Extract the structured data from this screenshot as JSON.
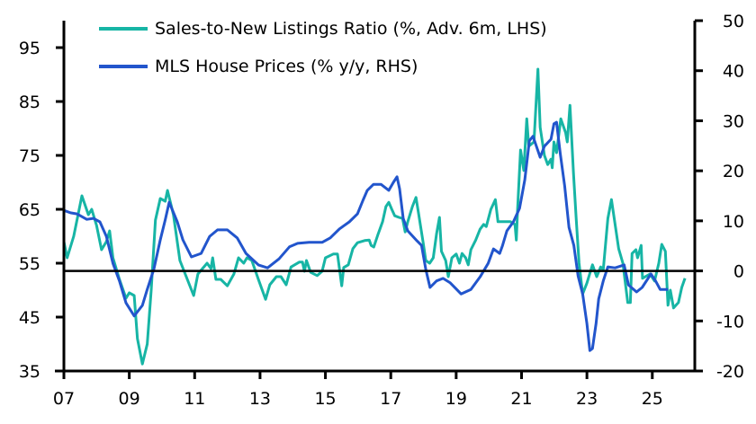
{
  "chart_data": {
    "type": "line",
    "title": "",
    "xlabel": "",
    "ylabel_left": "",
    "ylabel_right": "",
    "xlim": [
      2007,
      2026.3
    ],
    "ylim_left": [
      35,
      100
    ],
    "ylim_right": [
      -20,
      50
    ],
    "x_ticks": [
      2007,
      2009,
      2011,
      2013,
      2015,
      2017,
      2019,
      2021,
      2023,
      2025
    ],
    "x_tick_labels": [
      "07",
      "09",
      "11",
      "13",
      "15",
      "17",
      "19",
      "21",
      "23",
      "25"
    ],
    "y_left_ticks": [
      35,
      45,
      55,
      65,
      75,
      85,
      95
    ],
    "y_left_tick_labels": [
      "35",
      "45",
      "55",
      "65",
      "75",
      "85",
      "95"
    ],
    "y_right_ticks": [
      -20,
      -10,
      0,
      10,
      20,
      30,
      40,
      50
    ],
    "y_right_tick_labels": [
      "-20",
      "-10",
      "0",
      "10",
      "20",
      "30",
      "40",
      "50"
    ],
    "reference_line_right": 0,
    "grid": false,
    "legend_placement": "top-left",
    "series": [
      {
        "name": "Sales-to-New Listings Ratio (%, Adv. 6m, LHS)",
        "axis": "left",
        "color": "#17b5a5",
        "points": [
          [
            2007.0,
            59
          ],
          [
            2007.1,
            56
          ],
          [
            2007.3,
            60
          ],
          [
            2007.55,
            67.5
          ],
          [
            2007.75,
            64
          ],
          [
            2007.85,
            65
          ],
          [
            2008.0,
            62
          ],
          [
            2008.15,
            57.5
          ],
          [
            2008.3,
            59
          ],
          [
            2008.4,
            61
          ],
          [
            2008.5,
            56
          ],
          [
            2008.7,
            52
          ],
          [
            2008.9,
            48.5
          ],
          [
            2009.0,
            49.5
          ],
          [
            2009.15,
            49
          ],
          [
            2009.25,
            41
          ],
          [
            2009.4,
            36.3
          ],
          [
            2009.55,
            40
          ],
          [
            2009.67,
            50
          ],
          [
            2009.8,
            63
          ],
          [
            2009.95,
            67
          ],
          [
            2010.1,
            66.5
          ],
          [
            2010.17,
            68.5
          ],
          [
            2010.35,
            64
          ],
          [
            2010.55,
            55.5
          ],
          [
            2010.97,
            49
          ],
          [
            2011.1,
            53
          ],
          [
            2011.38,
            55
          ],
          [
            2011.5,
            54
          ],
          [
            2011.55,
            56
          ],
          [
            2011.65,
            52
          ],
          [
            2011.8,
            52
          ],
          [
            2012.0,
            50.8
          ],
          [
            2012.2,
            53
          ],
          [
            2012.34,
            56
          ],
          [
            2012.5,
            55
          ],
          [
            2012.6,
            56
          ],
          [
            2012.75,
            55.5
          ],
          [
            2012.95,
            52
          ],
          [
            2013.17,
            48.3
          ],
          [
            2013.3,
            51
          ],
          [
            2013.5,
            52.5
          ],
          [
            2013.64,
            52.5
          ],
          [
            2013.8,
            51
          ],
          [
            2013.95,
            54.3
          ],
          [
            2014.2,
            55.2
          ],
          [
            2014.3,
            55.2
          ],
          [
            2014.36,
            53.5
          ],
          [
            2014.42,
            55.5
          ],
          [
            2014.55,
            53.3
          ],
          [
            2014.75,
            52.7
          ],
          [
            2014.9,
            53.5
          ],
          [
            2015.0,
            56
          ],
          [
            2015.24,
            56.7
          ],
          [
            2015.37,
            56.7
          ],
          [
            2015.5,
            50.8
          ],
          [
            2015.56,
            54.2
          ],
          [
            2015.7,
            54.7
          ],
          [
            2015.84,
            57.7
          ],
          [
            2015.98,
            58.8
          ],
          [
            2016.2,
            59.2
          ],
          [
            2016.34,
            59.3
          ],
          [
            2016.4,
            58.3
          ],
          [
            2016.48,
            58
          ],
          [
            2016.6,
            60.2
          ],
          [
            2016.75,
            62.7
          ],
          [
            2016.85,
            65.5
          ],
          [
            2016.94,
            66.3
          ],
          [
            2017.03,
            65
          ],
          [
            2017.12,
            63.8
          ],
          [
            2017.25,
            63.5
          ],
          [
            2017.36,
            63.3
          ],
          [
            2017.44,
            60.8
          ],
          [
            2017.52,
            62.7
          ],
          [
            2017.66,
            65.5
          ],
          [
            2017.77,
            67.2
          ],
          [
            2017.85,
            64.2
          ],
          [
            2017.99,
            58.8
          ],
          [
            2018.07,
            55.5
          ],
          [
            2018.19,
            55
          ],
          [
            2018.3,
            56
          ],
          [
            2018.4,
            60.5
          ],
          [
            2018.49,
            63.5
          ],
          [
            2018.55,
            57.2
          ],
          [
            2018.68,
            55.5
          ],
          [
            2018.76,
            52.5
          ],
          [
            2018.87,
            56
          ],
          [
            2019.0,
            56.7
          ],
          [
            2019.1,
            55
          ],
          [
            2019.18,
            56.8
          ],
          [
            2019.29,
            56
          ],
          [
            2019.37,
            54.7
          ],
          [
            2019.45,
            57.5
          ],
          [
            2019.6,
            59.3
          ],
          [
            2019.73,
            61.3
          ],
          [
            2019.84,
            62.2
          ],
          [
            2019.92,
            61.8
          ],
          [
            2020.06,
            65
          ],
          [
            2020.2,
            66.8
          ],
          [
            2020.28,
            62.7
          ],
          [
            2020.47,
            62.7
          ],
          [
            2020.66,
            62.7
          ],
          [
            2020.8,
            62.2
          ],
          [
            2020.84,
            59.3
          ],
          [
            2020.88,
            65
          ],
          [
            2020.97,
            76
          ],
          [
            2021.07,
            72.2
          ],
          [
            2021.16,
            81.8
          ],
          [
            2021.22,
            76.7
          ],
          [
            2021.38,
            77.5
          ],
          [
            2021.5,
            91
          ],
          [
            2021.57,
            80.2
          ],
          [
            2021.7,
            75
          ],
          [
            2021.8,
            73.3
          ],
          [
            2021.9,
            74.3
          ],
          [
            2021.94,
            72.7
          ],
          [
            2021.99,
            77.5
          ],
          [
            2022.07,
            75.5
          ],
          [
            2022.2,
            81.8
          ],
          [
            2022.35,
            79.2
          ],
          [
            2022.4,
            77.5
          ],
          [
            2022.48,
            84.3
          ],
          [
            2022.59,
            71.7
          ],
          [
            2022.67,
            63.3
          ],
          [
            2022.76,
            55
          ],
          [
            2022.87,
            49.3
          ],
          [
            2023.0,
            51.3
          ],
          [
            2023.17,
            54.7
          ],
          [
            2023.3,
            52.5
          ],
          [
            2023.42,
            54.3
          ],
          [
            2023.5,
            53.8
          ],
          [
            2023.64,
            63.3
          ],
          [
            2023.75,
            66.8
          ],
          [
            2023.97,
            57.7
          ],
          [
            2024.1,
            55
          ],
          [
            2024.25,
            47.7
          ],
          [
            2024.33,
            47.7
          ],
          [
            2024.38,
            56.8
          ],
          [
            2024.5,
            57.5
          ],
          [
            2024.55,
            56
          ],
          [
            2024.66,
            58.3
          ],
          [
            2024.7,
            52.2
          ],
          [
            2024.93,
            53
          ],
          [
            2025.07,
            51.7
          ],
          [
            2025.2,
            55
          ],
          [
            2025.29,
            58.5
          ],
          [
            2025.4,
            57.2
          ],
          [
            2025.48,
            47.2
          ],
          [
            2025.55,
            50
          ],
          [
            2025.65,
            46.7
          ],
          [
            2025.8,
            47.7
          ],
          [
            2025.9,
            50.5
          ],
          [
            2026.0,
            52.2
          ]
        ]
      },
      {
        "name": "MLS House Prices (% y/y, RHS)",
        "axis": "right",
        "color": "#2255cc",
        "points": [
          [
            2007.0,
            12.1
          ],
          [
            2007.2,
            11.6
          ],
          [
            2007.4,
            11.4
          ],
          [
            2007.7,
            10.3
          ],
          [
            2007.9,
            10.5
          ],
          [
            2008.1,
            9.8
          ],
          [
            2008.3,
            6.9
          ],
          [
            2008.5,
            1.5
          ],
          [
            2008.7,
            -2
          ],
          [
            2008.9,
            -6.4
          ],
          [
            2009.15,
            -9
          ],
          [
            2009.4,
            -6.9
          ],
          [
            2009.55,
            -3.7
          ],
          [
            2009.75,
            0.3
          ],
          [
            2009.95,
            6.2
          ],
          [
            2010.1,
            10.2
          ],
          [
            2010.22,
            13.7
          ],
          [
            2010.47,
            9.8
          ],
          [
            2010.64,
            6.2
          ],
          [
            2010.9,
            2.8
          ],
          [
            2011.2,
            3.5
          ],
          [
            2011.46,
            6.9
          ],
          [
            2011.7,
            8.2
          ],
          [
            2012.0,
            8.2
          ],
          [
            2012.3,
            6.6
          ],
          [
            2012.57,
            3.5
          ],
          [
            2012.95,
            1.2
          ],
          [
            2013.23,
            0.6
          ],
          [
            2013.58,
            2.4
          ],
          [
            2013.9,
            4.8
          ],
          [
            2014.15,
            5.5
          ],
          [
            2014.5,
            5.7
          ],
          [
            2014.9,
            5.7
          ],
          [
            2015.15,
            6.6
          ],
          [
            2015.43,
            8.4
          ],
          [
            2015.73,
            9.8
          ],
          [
            2015.98,
            11.4
          ],
          [
            2016.15,
            14.1
          ],
          [
            2016.28,
            16.1
          ],
          [
            2016.47,
            17.3
          ],
          [
            2016.7,
            17.3
          ],
          [
            2016.94,
            16.1
          ],
          [
            2017.08,
            17.7
          ],
          [
            2017.19,
            18.8
          ],
          [
            2017.27,
            16.4
          ],
          [
            2017.38,
            10.5
          ],
          [
            2017.52,
            8
          ],
          [
            2017.8,
            6
          ],
          [
            2017.94,
            5.1
          ],
          [
            2018.07,
            0.3
          ],
          [
            2018.2,
            -3.3
          ],
          [
            2018.4,
            -2
          ],
          [
            2018.6,
            -1.5
          ],
          [
            2018.82,
            -2.4
          ],
          [
            2019.15,
            -4.6
          ],
          [
            2019.45,
            -3.7
          ],
          [
            2019.73,
            -1.2
          ],
          [
            2019.98,
            1.5
          ],
          [
            2020.14,
            4.4
          ],
          [
            2020.33,
            3.5
          ],
          [
            2020.42,
            5.1
          ],
          [
            2020.55,
            8
          ],
          [
            2020.75,
            9.8
          ],
          [
            2020.94,
            12.5
          ],
          [
            2021.1,
            18.2
          ],
          [
            2021.24,
            26
          ],
          [
            2021.35,
            26.9
          ],
          [
            2021.57,
            22.7
          ],
          [
            2021.7,
            24.9
          ],
          [
            2021.9,
            26.3
          ],
          [
            2021.99,
            29.4
          ],
          [
            2022.07,
            29.7
          ],
          [
            2022.18,
            23.6
          ],
          [
            2022.32,
            17
          ],
          [
            2022.45,
            8.7
          ],
          [
            2022.6,
            5.1
          ],
          [
            2022.73,
            -1
          ],
          [
            2022.87,
            -4.6
          ],
          [
            2023.0,
            -10.5
          ],
          [
            2023.09,
            -15.9
          ],
          [
            2023.17,
            -15.5
          ],
          [
            2023.28,
            -10.5
          ],
          [
            2023.36,
            -5.6
          ],
          [
            2023.5,
            -2
          ],
          [
            2023.64,
            0.8
          ],
          [
            2023.86,
            0.6
          ],
          [
            2024.14,
            1.2
          ],
          [
            2024.27,
            -2.8
          ],
          [
            2024.52,
            -4.2
          ],
          [
            2024.69,
            -3.3
          ],
          [
            2024.96,
            -0.6
          ],
          [
            2025.1,
            -2
          ],
          [
            2025.24,
            -3.7
          ],
          [
            2025.48,
            -3.7
          ]
        ]
      }
    ]
  }
}
